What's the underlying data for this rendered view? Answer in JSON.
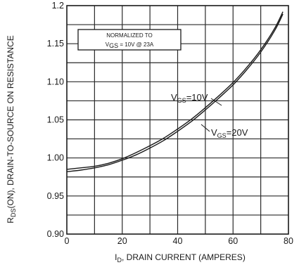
{
  "chart_data": {
    "type": "line",
    "xlabel": {
      "main": "I",
      "sub": "D",
      "rest": ", DRAIN CURRENT (AMPERES)"
    },
    "ylabel": {
      "main": "R",
      "sub": "DS",
      "rest": "(ON), DRAIN-TO-SOURCE ON RESISTANCE"
    },
    "xlim": [
      0,
      80
    ],
    "ylim": [
      0.9,
      1.2
    ],
    "x_ticks": [
      "0",
      "20",
      "40",
      "60",
      "80"
    ],
    "y_ticks": [
      "0.90",
      "0.95",
      "1.00",
      "1.05",
      "1.10",
      "1.15",
      "1.2"
    ],
    "grid": true,
    "annotation_box": {
      "line1": "NORMALIZED TO",
      "line2": {
        "v": "V",
        "sub": "GS",
        "rest": " = 10V  @  23A"
      }
    },
    "series": [
      {
        "name": {
          "v": "V",
          "sub": "GS",
          "rest": "=10V"
        },
        "x": [
          0,
          5,
          10,
          15,
          20,
          25,
          30,
          35,
          40,
          45,
          50,
          55,
          60,
          65,
          70,
          75,
          78
        ],
        "y": [
          0.985,
          0.987,
          0.989,
          0.993,
          0.999,
          1.007,
          1.016,
          1.026,
          1.038,
          1.051,
          1.066,
          1.082,
          1.099,
          1.119,
          1.142,
          1.17,
          1.192
        ]
      },
      {
        "name": {
          "v": "V",
          "sub": "GS",
          "rest": "=20V"
        },
        "x": [
          0,
          5,
          10,
          15,
          20,
          25,
          30,
          35,
          40,
          45,
          50,
          55,
          60,
          65,
          70,
          75,
          78
        ],
        "y": [
          0.982,
          0.984,
          0.987,
          0.991,
          0.997,
          1.004,
          1.013,
          1.023,
          1.035,
          1.048,
          1.063,
          1.079,
          1.096,
          1.116,
          1.139,
          1.167,
          1.189
        ]
      }
    ]
  }
}
